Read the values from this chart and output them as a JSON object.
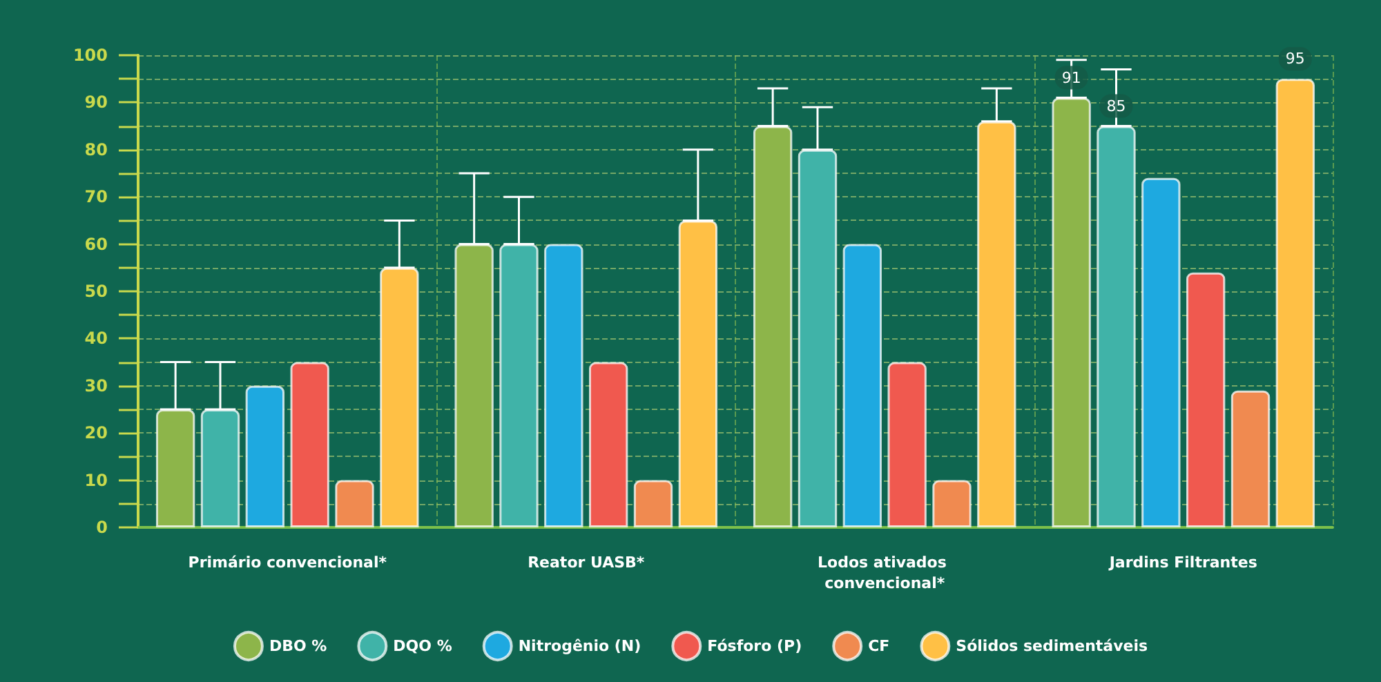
{
  "chart_data": {
    "type": "bar",
    "categories": [
      "Primário convencional*",
      "Reator UASB*",
      "Lodos ativados convencional*",
      "Jardins Filtrantes"
    ],
    "series": [
      {
        "name": "DBO %",
        "color": "#8db54a",
        "values": [
          25,
          60,
          85,
          91
        ],
        "errors": [
          [
            25,
            35
          ],
          [
            60,
            75
          ],
          [
            85,
            93
          ],
          [
            91,
            99
          ]
        ],
        "value_labels": [
          null,
          null,
          null,
          "91"
        ]
      },
      {
        "name": "DQO %",
        "color": "#40b3a8",
        "values": [
          25,
          60,
          80,
          85
        ],
        "errors": [
          [
            25,
            35
          ],
          [
            60,
            70
          ],
          [
            80,
            89
          ],
          [
            85,
            97
          ]
        ],
        "value_labels": [
          null,
          null,
          null,
          "85"
        ]
      },
      {
        "name": "Nitrogênio (N)",
        "color": "#1ea9e0",
        "values": [
          30,
          60,
          60,
          74
        ]
      },
      {
        "name": "Fósforo (P)",
        "color": "#f0594f",
        "values": [
          35,
          35,
          35,
          54
        ]
      },
      {
        "name": "CF",
        "color": "#f08a50",
        "values": [
          10,
          10,
          10,
          29
        ]
      },
      {
        "name": "Sólidos sedimentáveis",
        "color": "#ffc045",
        "values": [
          55,
          65,
          86,
          95
        ],
        "errors": [
          [
            55,
            65
          ],
          [
            65,
            80
          ],
          [
            86,
            93
          ],
          null
        ],
        "value_labels": [
          null,
          null,
          null,
          "95"
        ]
      }
    ],
    "ylim": [
      0,
      100
    ],
    "yticks": [
      0,
      {
        "value": 5,
        "label": null
      },
      10,
      {
        "value": 15,
        "label": null
      },
      20,
      {
        "value": 25,
        "label": null
      },
      30,
      {
        "value": 35,
        "label": null
      },
      40,
      {
        "value": 45,
        "label": null
      },
      50,
      {
        "value": 55,
        "label": null
      },
      60,
      {
        "value": 65,
        "label": null
      },
      70,
      {
        "value": 75,
        "label": null
      },
      80,
      {
        "value": 85,
        "label": null
      },
      90,
      {
        "value": 95,
        "label": null
      },
      100
    ],
    "grid": true,
    "legend": "bottom"
  }
}
